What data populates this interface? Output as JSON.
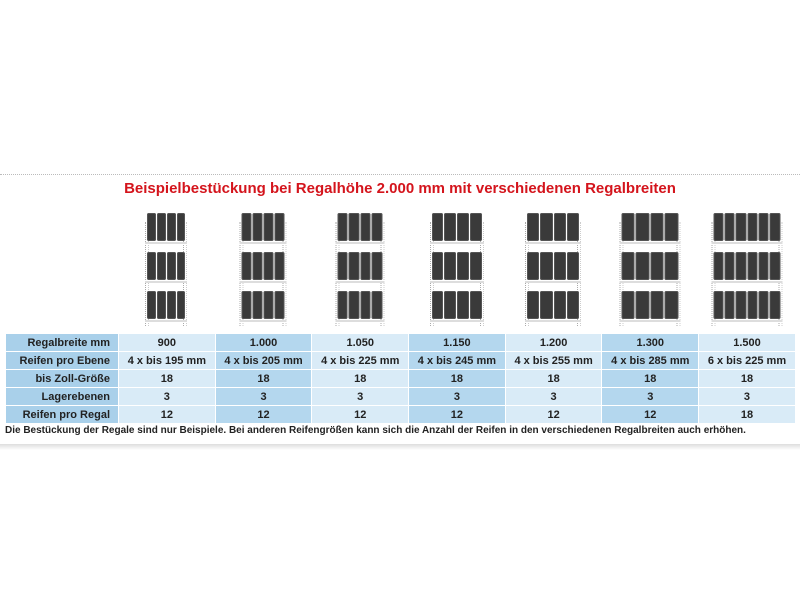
{
  "title": "Beispielbestückung bei Regalhöhe 2.000 mm mit verschiedenen Regalbreiten",
  "colors": {
    "title": "#d4141c",
    "label_col": "#a9d0ea",
    "col_light": "#d9ebf7",
    "col_dark": "#b4d7ee",
    "tire": "#3a3a3a"
  },
  "racks": [
    {
      "tires_per_level": 4,
      "levels": 3
    },
    {
      "tires_per_level": 4,
      "levels": 3
    },
    {
      "tires_per_level": 4,
      "levels": 3
    },
    {
      "tires_per_level": 4,
      "levels": 3
    },
    {
      "tires_per_level": 4,
      "levels": 3
    },
    {
      "tires_per_level": 4,
      "levels": 3
    },
    {
      "tires_per_level": 6,
      "levels": 3
    }
  ],
  "table": {
    "rows": [
      {
        "label": "Regalbreite mm",
        "values": [
          "900",
          "1.000",
          "1.050",
          "1.150",
          "1.200",
          "1.300",
          "1.500"
        ]
      },
      {
        "label": "Reifen pro Ebene",
        "values": [
          "4 x bis 195 mm",
          "4 x bis 205 mm",
          "4 x bis 225 mm",
          "4 x bis 245 mm",
          "4 x bis 255 mm",
          "4 x bis 285 mm",
          "6 x bis 225 mm"
        ]
      },
      {
        "label": "bis Zoll-Größe",
        "values": [
          "18",
          "18",
          "18",
          "18",
          "18",
          "18",
          "18"
        ]
      },
      {
        "label": "Lagerebenen",
        "values": [
          "3",
          "3",
          "3",
          "3",
          "3",
          "3",
          "3"
        ]
      },
      {
        "label": "Reifen pro Regal",
        "values": [
          "12",
          "12",
          "12",
          "12",
          "12",
          "12",
          "18"
        ]
      }
    ]
  },
  "note": "Die Bestückung der Regale sind nur Beispiele. Bei anderen Reifengrößen kann sich die Anzahl der Reifen in den verschiedenen Regalbreiten auch erhöhen."
}
